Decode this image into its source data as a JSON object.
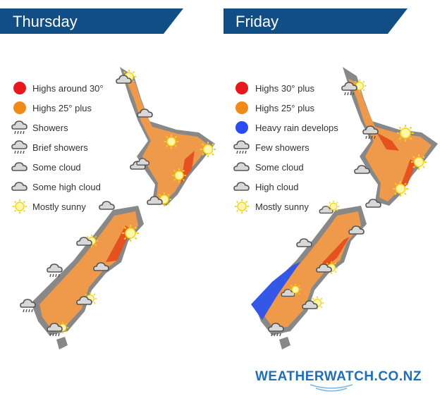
{
  "panels": [
    {
      "title": "Thursday",
      "legend": [
        {
          "label": "Highs around 30°"
        },
        {
          "label": "Highs 25° plus"
        },
        {
          "label": "Showers"
        },
        {
          "label": "Brief showers"
        },
        {
          "label": "Some cloud"
        },
        {
          "label": "Some high cloud"
        },
        {
          "label": "Mostly sunny"
        }
      ]
    },
    {
      "title": "Friday",
      "legend": [
        {
          "label": "Highs 30° plus"
        },
        {
          "label": "Highs 25° plus"
        },
        {
          "label": "Heavy rain develops"
        },
        {
          "label": "Few showers"
        },
        {
          "label": "Some cloud"
        },
        {
          "label": "High cloud"
        },
        {
          "label": "Mostly sunny"
        }
      ]
    }
  ],
  "brand": "WEATHERWATCH.CO.NZ"
}
